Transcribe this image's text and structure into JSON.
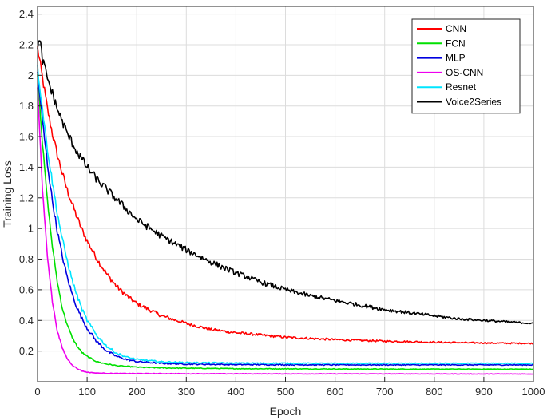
{
  "chart_data": {
    "type": "line",
    "xlabel": "Epoch",
    "ylabel": "Training Loss",
    "xlim": [
      0,
      1000
    ],
    "ylim": [
      0,
      2.45
    ],
    "xticks": [
      0,
      100,
      200,
      300,
      400,
      500,
      600,
      700,
      800,
      900,
      1000
    ],
    "yticks": [
      0.2,
      0.4,
      0.6,
      0.8,
      1,
      1.2,
      1.4,
      1.6,
      1.8,
      2,
      2.2,
      2.4
    ],
    "grid": true,
    "legend_position": "top-right",
    "series": [
      {
        "name": "CNN",
        "color": "#ff0000",
        "noise": 0.03,
        "x": [
          0,
          10,
          20,
          30,
          40,
          50,
          60,
          70,
          80,
          90,
          100,
          120,
          140,
          160,
          180,
          200,
          250,
          300,
          350,
          400,
          500,
          600,
          700,
          800,
          900,
          1000
        ],
        "y": [
          2.18,
          1.98,
          1.78,
          1.62,
          1.48,
          1.36,
          1.25,
          1.16,
          1.07,
          0.99,
          0.92,
          0.8,
          0.7,
          0.62,
          0.56,
          0.51,
          0.43,
          0.38,
          0.34,
          0.32,
          0.29,
          0.275,
          0.265,
          0.258,
          0.253,
          0.25
        ]
      },
      {
        "name": "FCN",
        "color": "#00e000",
        "noise": 0.015,
        "x": [
          0,
          10,
          20,
          30,
          40,
          50,
          60,
          70,
          80,
          90,
          100,
          120,
          140,
          160,
          200,
          250,
          300,
          400,
          600,
          800,
          1000
        ],
        "y": [
          2.02,
          1.55,
          1.18,
          0.88,
          0.65,
          0.48,
          0.37,
          0.29,
          0.23,
          0.19,
          0.165,
          0.13,
          0.115,
          0.105,
          0.095,
          0.09,
          0.088,
          0.085,
          0.083,
          0.082,
          0.082
        ]
      },
      {
        "name": "MLP",
        "color": "#0000e0",
        "noise": 0.025,
        "x": [
          0,
          10,
          20,
          30,
          40,
          50,
          60,
          70,
          80,
          90,
          100,
          120,
          140,
          160,
          180,
          200,
          250,
          300,
          400,
          600,
          800,
          1000
        ],
        "y": [
          2.02,
          1.7,
          1.42,
          1.18,
          0.98,
          0.82,
          0.68,
          0.57,
          0.48,
          0.41,
          0.35,
          0.26,
          0.2,
          0.165,
          0.145,
          0.132,
          0.12,
          0.115,
          0.112,
          0.11,
          0.11,
          0.11
        ]
      },
      {
        "name": "OS-CNN",
        "color": "#ee00ee",
        "noise": 0.012,
        "x": [
          0,
          10,
          20,
          30,
          40,
          50,
          60,
          70,
          80,
          90,
          100,
          120,
          150,
          200,
          300,
          500,
          700,
          1000
        ],
        "y": [
          1.92,
          1.25,
          0.82,
          0.52,
          0.33,
          0.22,
          0.15,
          0.11,
          0.085,
          0.07,
          0.062,
          0.056,
          0.054,
          0.053,
          0.052,
          0.051,
          0.051,
          0.05
        ]
      },
      {
        "name": "Resnet",
        "color": "#00e5ff",
        "noise": 0.025,
        "x": [
          0,
          10,
          20,
          30,
          40,
          50,
          60,
          70,
          80,
          90,
          100,
          120,
          140,
          160,
          180,
          200,
          250,
          300,
          400,
          600,
          800,
          1000
        ],
        "y": [
          2.05,
          1.78,
          1.52,
          1.3,
          1.1,
          0.93,
          0.79,
          0.66,
          0.56,
          0.47,
          0.4,
          0.3,
          0.23,
          0.185,
          0.16,
          0.145,
          0.13,
          0.125,
          0.122,
          0.12,
          0.12,
          0.12
        ]
      },
      {
        "name": "Voice2Series",
        "color": "#000000",
        "noise": 0.035,
        "x": [
          0,
          5,
          10,
          20,
          30,
          40,
          50,
          60,
          80,
          100,
          120,
          150,
          200,
          250,
          300,
          350,
          400,
          450,
          500,
          550,
          600,
          650,
          700,
          750,
          800,
          850,
          900,
          950,
          1000
        ],
        "y": [
          2.2,
          2.22,
          2.1,
          1.98,
          1.88,
          1.78,
          1.7,
          1.62,
          1.5,
          1.4,
          1.32,
          1.22,
          1.06,
          0.95,
          0.86,
          0.78,
          0.71,
          0.65,
          0.6,
          0.56,
          0.53,
          0.5,
          0.47,
          0.45,
          0.43,
          0.41,
          0.4,
          0.39,
          0.38
        ]
      }
    ]
  }
}
